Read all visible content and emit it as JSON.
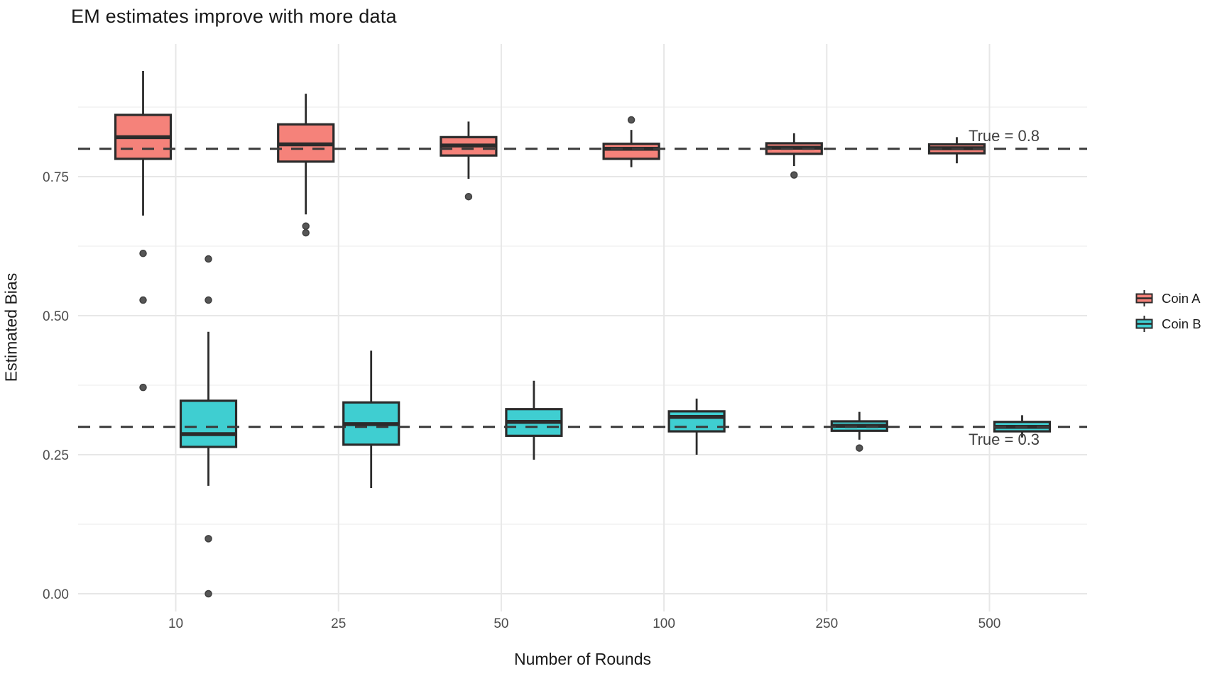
{
  "title": "EM estimates improve with more data",
  "axes": {
    "x": {
      "label": "Number of Rounds",
      "categories": [
        "10",
        "25",
        "50",
        "100",
        "250",
        "500"
      ]
    },
    "y": {
      "label": "Estimated Bias",
      "ticks": [
        {
          "label": "0.00",
          "value": 0.0
        },
        {
          "label": "0.25",
          "value": 0.25
        },
        {
          "label": "0.50",
          "value": 0.5
        },
        {
          "label": "0.75",
          "value": 0.75
        }
      ]
    }
  },
  "legend": {
    "items": [
      {
        "label": "Coin A",
        "color": "#F5827A"
      },
      {
        "label": "Coin B",
        "color": "#3FCED1"
      }
    ]
  },
  "annotations": [
    {
      "text": "True = 0.8",
      "value": 0.8
    },
    {
      "text": "True = 0.3",
      "value": 0.3
    }
  ],
  "chart_data": {
    "type": "boxplot",
    "title": "EM estimates improve with more data",
    "xlabel": "Number of Rounds",
    "ylabel": "Estimated Bias",
    "ylim": [
      -0.03,
      0.99
    ],
    "grid": true,
    "y_major_gridlines": [
      0.0,
      0.25,
      0.5,
      0.75
    ],
    "y_minor_gridlines": [
      0.125,
      0.375,
      0.625,
      0.875
    ],
    "legend_position": "right",
    "reference_lines": [
      {
        "value": 0.8,
        "label": "True = 0.8",
        "style": "dashed"
      },
      {
        "value": 0.3,
        "label": "True = 0.3",
        "style": "dashed"
      }
    ],
    "categories": [
      "10",
      "25",
      "50",
      "100",
      "250",
      "500"
    ],
    "series": [
      {
        "name": "Coin A",
        "fill": "#F5827A",
        "boxes": [
          {
            "category": "10",
            "whisker_low": 0.68,
            "q1": 0.782,
            "median": 0.821,
            "q3": 0.861,
            "whisker_high": 0.94,
            "outliers": [
              0.612,
              0.528,
              0.371
            ]
          },
          {
            "category": "25",
            "whisker_low": 0.682,
            "q1": 0.777,
            "median": 0.808,
            "q3": 0.844,
            "whisker_high": 0.899,
            "outliers": [
              0.661,
              0.649
            ]
          },
          {
            "category": "50",
            "whisker_low": 0.746,
            "q1": 0.788,
            "median": 0.806,
            "q3": 0.821,
            "whisker_high": 0.849,
            "outliers": [
              0.714
            ]
          },
          {
            "category": "100",
            "whisker_low": 0.767,
            "q1": 0.782,
            "median": 0.8,
            "q3": 0.809,
            "whisker_high": 0.834,
            "outliers": [
              0.852
            ]
          },
          {
            "category": "250",
            "whisker_low": 0.769,
            "q1": 0.791,
            "median": 0.802,
            "q3": 0.81,
            "whisker_high": 0.828,
            "outliers": [
              0.753
            ]
          },
          {
            "category": "500",
            "whisker_low": 0.774,
            "q1": 0.792,
            "median": 0.801,
            "q3": 0.808,
            "whisker_high": 0.821,
            "outliers": []
          }
        ]
      },
      {
        "name": "Coin B",
        "fill": "#3FCED1",
        "boxes": [
          {
            "category": "10",
            "whisker_low": 0.194,
            "q1": 0.264,
            "median": 0.287,
            "q3": 0.347,
            "whisker_high": 0.471,
            "outliers": [
              0.602,
              0.528,
              0.099,
              0.0
            ]
          },
          {
            "category": "25",
            "whisker_low": 0.19,
            "q1": 0.268,
            "median": 0.305,
            "q3": 0.344,
            "whisker_high": 0.437,
            "outliers": []
          },
          {
            "category": "50",
            "whisker_low": 0.241,
            "q1": 0.284,
            "median": 0.309,
            "q3": 0.332,
            "whisker_high": 0.383,
            "outliers": []
          },
          {
            "category": "100",
            "whisker_low": 0.25,
            "q1": 0.292,
            "median": 0.318,
            "q3": 0.328,
            "whisker_high": 0.351,
            "outliers": []
          },
          {
            "category": "250",
            "whisker_low": 0.277,
            "q1": 0.293,
            "median": 0.302,
            "q3": 0.31,
            "whisker_high": 0.327,
            "outliers": [
              0.262
            ]
          },
          {
            "category": "500",
            "whisker_low": 0.281,
            "q1": 0.292,
            "median": 0.3,
            "q3": 0.309,
            "whisker_high": 0.321,
            "outliers": []
          }
        ]
      }
    ]
  },
  "style": {
    "background": "#FFFFFF",
    "major_grid_color": "#E7E7E7",
    "minor_grid_color": "#F2F2F2",
    "box_stroke_color": "#2B2B2B",
    "outlier_color": "#565656",
    "reference_line_color": "#3A3A3A",
    "tick_label_color": "#4D4D4D",
    "annotation_color": "#404040"
  }
}
